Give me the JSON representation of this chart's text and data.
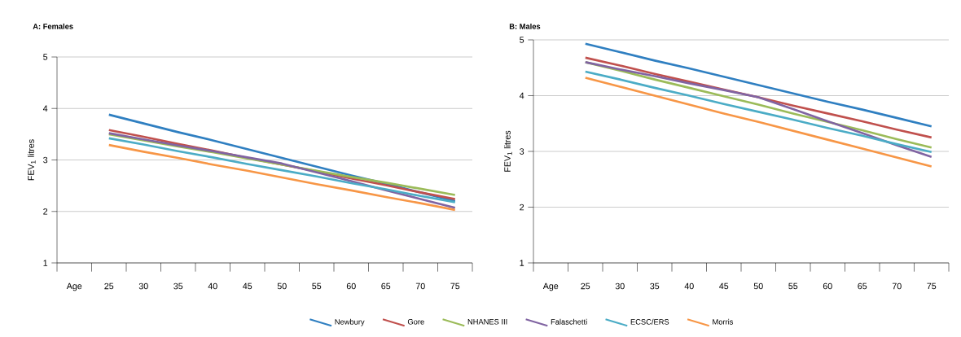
{
  "chart_data": [
    {
      "type": "line",
      "title": "A: Females",
      "ylabel": "FEV$_{1}$ litres",
      "categories": [
        "Age",
        "25",
        "30",
        "35",
        "40",
        "45",
        "50",
        "55",
        "60",
        "65",
        "70",
        "75"
      ],
      "ylim": [
        1,
        5
      ],
      "yticks": [
        1,
        2,
        3,
        4,
        5
      ],
      "grid": "y",
      "legend": "bottom",
      "line_style": "solid",
      "marker": "none",
      "series": [
        {
          "name": "Newbury",
          "color": "#2f7fc1",
          "values": [
            null,
            3.88,
            3.71,
            3.54,
            3.38,
            3.21,
            3.04,
            2.87,
            2.7,
            2.54,
            2.37,
            2.2
          ]
        },
        {
          "name": "Gore",
          "color": "#c0504d",
          "values": [
            null,
            3.58,
            3.45,
            3.31,
            3.18,
            3.04,
            2.91,
            2.78,
            2.64,
            2.51,
            2.37,
            2.24
          ]
        },
        {
          "name": "NHANES III",
          "color": "#9bbb59",
          "values": [
            null,
            3.5,
            3.38,
            3.26,
            3.15,
            3.03,
            2.91,
            2.79,
            2.67,
            2.56,
            2.44,
            2.32
          ]
        },
        {
          "name": "Falaschetti",
          "color": "#8064a2",
          "values": [
            null,
            3.52,
            3.4,
            3.28,
            3.17,
            3.05,
            2.93,
            2.76,
            2.59,
            2.41,
            2.24,
            2.07
          ]
        },
        {
          "name": "ECSC/ERS",
          "color": "#4bacc6",
          "values": [
            null,
            3.42,
            3.3,
            3.17,
            3.05,
            2.92,
            2.8,
            2.68,
            2.55,
            2.43,
            2.3,
            2.18
          ]
        },
        {
          "name": "Morris",
          "color": "#f79646",
          "values": [
            null,
            3.29,
            3.16,
            3.04,
            2.91,
            2.79,
            2.66,
            2.53,
            2.41,
            2.28,
            2.16,
            2.03
          ]
        }
      ]
    },
    {
      "type": "line",
      "title": "B: Males",
      "ylabel": "FEV$_{1}$ litres",
      "categories": [
        "Age",
        "25",
        "30",
        "35",
        "40",
        "45",
        "50",
        "55",
        "60",
        "65",
        "70",
        "75"
      ],
      "ylim": [
        1,
        5
      ],
      "yticks": [
        1,
        2,
        3,
        4,
        5
      ],
      "grid": "y",
      "line_style": "solid",
      "marker": "none",
      "series": [
        {
          "color": "#2f7fc1",
          "values": [
            null,
            4.93,
            4.78,
            4.63,
            4.49,
            4.34,
            4.19,
            4.04,
            3.89,
            3.75,
            3.6,
            3.45
          ]
        },
        {
          "color": "#c0504d",
          "values": [
            null,
            4.68,
            4.54,
            4.39,
            4.25,
            4.11,
            3.97,
            3.82,
            3.68,
            3.54,
            3.39,
            3.25
          ]
        },
        {
          "color": "#9bbb59",
          "values": [
            null,
            4.6,
            4.45,
            4.29,
            4.14,
            3.99,
            3.84,
            3.68,
            3.53,
            3.38,
            3.22,
            3.07
          ]
        },
        {
          "color": "#8064a2",
          "values": [
            null,
            4.6,
            4.47,
            4.35,
            4.22,
            4.1,
            3.97,
            3.76,
            3.54,
            3.33,
            3.11,
            2.9
          ]
        },
        {
          "color": "#4bacc6",
          "values": [
            null,
            4.43,
            4.29,
            4.14,
            4.0,
            3.85,
            3.71,
            3.57,
            3.42,
            3.28,
            3.13,
            2.99
          ]
        },
        {
          "color": "#f79646",
          "values": [
            null,
            4.32,
            4.16,
            4.0,
            3.84,
            3.68,
            3.53,
            3.37,
            3.21,
            3.05,
            2.89,
            2.73
          ]
        }
      ]
    }
  ]
}
